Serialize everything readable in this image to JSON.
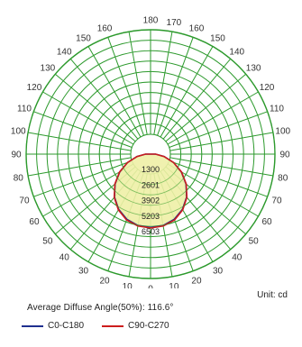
{
  "chart_data": {
    "type": "polar",
    "angle_labels": {
      "left": [
        "160",
        "150",
        "140",
        "130",
        "120",
        "110",
        "100",
        "90",
        "80",
        "70",
        "60",
        "50",
        "40",
        "30",
        "20",
        "10"
      ],
      "right": [
        "170",
        "160",
        "150",
        "140",
        "130",
        "120",
        "110",
        "100",
        "90",
        "80",
        "70",
        "60",
        "50",
        "40",
        "30",
        "20",
        "10"
      ],
      "top": "180",
      "bottom": "0"
    },
    "intensity_rings": [
      "1300",
      "2601",
      "3902",
      "5203",
      "6503"
    ],
    "max_intensity": 6503,
    "unit_label": "Unit: cd",
    "average_angle_text": "Average Diffuse Angle(50%): 116.6°",
    "series": [
      {
        "name": "C0-C180",
        "color": "#1f2f8f",
        "angles": [
          0,
          10,
          20,
          30,
          40,
          50,
          60,
          70,
          80,
          90
        ],
        "values": [
          6150,
          6080,
          5820,
          5350,
          4700,
          3880,
          2980,
          2050,
          1150,
          420
        ]
      },
      {
        "name": "C90-C270",
        "color": "#cc1d1d",
        "angles": [
          0,
          10,
          20,
          30,
          40,
          50,
          60,
          70,
          80,
          90
        ],
        "values": [
          6200,
          6120,
          5880,
          5400,
          4740,
          3910,
          3000,
          2060,
          1160,
          430
        ]
      }
    ],
    "colors": {
      "grid": "#2d9a2d",
      "fill": "#eef0a6",
      "background": "#ffffff"
    }
  }
}
